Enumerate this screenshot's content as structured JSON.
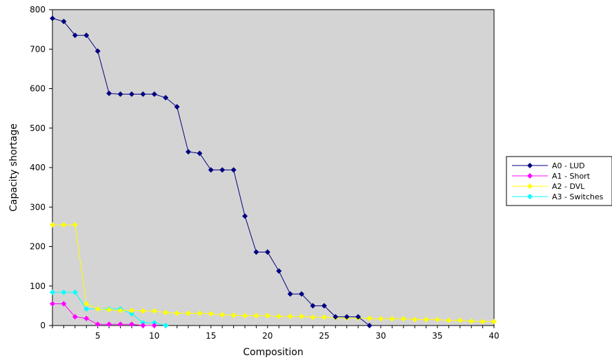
{
  "chart_data": {
    "type": "line",
    "title": "",
    "xlabel": "Composition",
    "ylabel": "Capacity shortage",
    "xlim": [
      1,
      40
    ],
    "ylim": [
      0,
      800
    ],
    "x_ticks": [
      5,
      10,
      15,
      20,
      25,
      30,
      35,
      40
    ],
    "y_ticks": [
      0,
      100,
      200,
      300,
      400,
      500,
      600,
      700,
      800
    ],
    "grid": false,
    "plot_background": "#d4d4d4",
    "legend_position": "right",
    "series": [
      {
        "name": "A0 - LUD",
        "color": "#000080",
        "marker": "diamond",
        "x": [
          1,
          2,
          3,
          4,
          5,
          6,
          7,
          8,
          9,
          10,
          11,
          12,
          13,
          14,
          15,
          16,
          17,
          18,
          19,
          20,
          21,
          22,
          23,
          24,
          25,
          26,
          27,
          28,
          29
        ],
        "values": [
          778,
          770,
          735,
          735,
          695,
          588,
          586,
          586,
          586,
          586,
          577,
          554,
          440,
          436,
          394,
          394,
          394,
          277,
          186,
          186,
          138,
          80,
          80,
          50,
          50,
          22,
          22,
          22,
          0
        ]
      },
      {
        "name": "A1 - Short",
        "color": "#ff00ff",
        "marker": "diamond",
        "x": [
          1,
          2,
          3,
          4,
          5,
          6,
          7,
          8,
          9,
          10
        ],
        "values": [
          55,
          55,
          22,
          18,
          3,
          3,
          3,
          3,
          0,
          0
        ]
      },
      {
        "name": "A2 - DVL",
        "color": "#ffff00",
        "marker": "diamond",
        "x": [
          1,
          2,
          3,
          4,
          5,
          6,
          7,
          8,
          9,
          10,
          11,
          12,
          13,
          14,
          15,
          16,
          17,
          18,
          19,
          20,
          21,
          22,
          23,
          24,
          25,
          26,
          27,
          28,
          29,
          30,
          31,
          32,
          33,
          34,
          35,
          36,
          37,
          38,
          39,
          40
        ],
        "values": [
          255,
          255,
          255,
          55,
          42,
          40,
          38,
          38,
          37,
          37,
          33,
          31,
          31,
          31,
          30,
          27,
          26,
          25,
          25,
          25,
          23,
          23,
          23,
          21,
          21,
          20,
          19,
          19,
          18,
          17,
          17,
          17,
          15,
          15,
          15,
          13,
          13,
          11,
          10,
          10
        ]
      },
      {
        "name": "A3 - Switches",
        "color": "#00ffff",
        "marker": "diamond",
        "x": [
          1,
          2,
          3,
          4,
          5,
          6,
          7,
          8,
          9,
          10,
          11
        ],
        "values": [
          84,
          84,
          84,
          42,
          42,
          42,
          42,
          30,
          7,
          7,
          0
        ]
      }
    ]
  }
}
